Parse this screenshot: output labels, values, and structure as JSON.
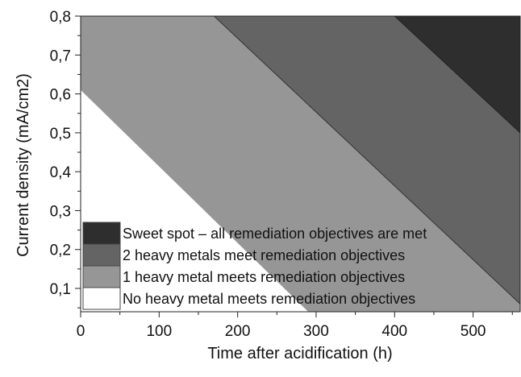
{
  "chart_data": {
    "type": "area",
    "title": "",
    "xlabel": "Time after acidification (h)",
    "ylabel": "Current density (mA/cm2)",
    "xlim": [
      0,
      560
    ],
    "ylim": [
      0.04,
      0.8
    ],
    "x_ticks": [
      {
        "value": 0,
        "label": "0"
      },
      {
        "value": 100,
        "label": "100"
      },
      {
        "value": 200,
        "label": "200"
      },
      {
        "value": 300,
        "label": "300"
      },
      {
        "value": 400,
        "label": "400"
      },
      {
        "value": 500,
        "label": "500"
      }
    ],
    "y_ticks": [
      {
        "value": 0.1,
        "label": "0,1"
      },
      {
        "value": 0.2,
        "label": "0,2"
      },
      {
        "value": 0.3,
        "label": "0,3"
      },
      {
        "value": 0.4,
        "label": "0,4"
      },
      {
        "value": 0.5,
        "label": "0,5"
      },
      {
        "value": 0.6,
        "label": "0,6"
      },
      {
        "value": 0.7,
        "label": "0,7"
      },
      {
        "value": 0.8,
        "label": "0,8"
      }
    ],
    "regions": [
      {
        "name": "No heavy metal meets remediation objectives",
        "color": "#ffffff"
      },
      {
        "name": "1 heavy metal meets remediation objectives",
        "color": "#969696"
      },
      {
        "name": "2 heavy metals meet remediation objectives",
        "color": "#646464"
      },
      {
        "name": "Sweet spot – all remediation objectives are met",
        "color": "#2e2e2e"
      }
    ],
    "boundaries": [
      {
        "between": "none / 1 metal",
        "points": [
          [
            0,
            0.61
          ],
          [
            290,
            0.04
          ]
        ]
      },
      {
        "between": "1 metal / 2 metals",
        "points": [
          [
            170,
            0.8
          ],
          [
            560,
            0.06
          ]
        ]
      },
      {
        "between": "2 metals / all objectives",
        "points": [
          [
            400,
            0.8
          ],
          [
            560,
            0.5
          ]
        ]
      }
    ],
    "legend": {
      "position": "bottom-left",
      "items": [
        {
          "label": "Sweet spot – all remediation objectives are met",
          "color": "#2e2e2e"
        },
        {
          "label": "2 heavy metals meet remediation objectives",
          "color": "#646464"
        },
        {
          "label": "1 heavy metal meets remediation objectives",
          "color": "#969696"
        },
        {
          "label": "No heavy metal meets remediation objectives",
          "color": "#ffffff"
        }
      ]
    },
    "grid": false
  }
}
